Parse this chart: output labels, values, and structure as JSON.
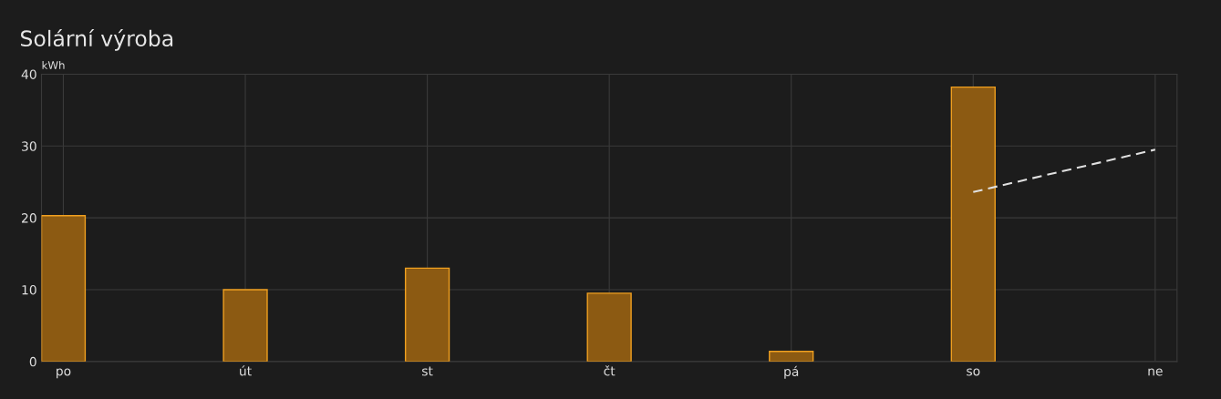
{
  "chart_data": {
    "type": "bar",
    "title": "Solární výroba",
    "ylabel": "kWh",
    "categories": [
      "po",
      "út",
      "st",
      "čt",
      "pá",
      "so",
      "ne"
    ],
    "series": [
      {
        "color": "#8c5a12",
        "values": [
          20.3,
          10.0,
          13.0,
          9.5,
          1.4,
          38.2,
          null
        ]
      },
      {
        "type": "line",
        "color": "#e0e0e0",
        "line_style": "dashed",
        "marker": "none",
        "values": [
          null,
          null,
          null,
          null,
          null,
          23.6,
          29.5
        ]
      }
    ],
    "ylim": [
      0,
      40
    ],
    "yticks": [
      0,
      10,
      20,
      30,
      40
    ],
    "grid": true,
    "legend": false
  }
}
